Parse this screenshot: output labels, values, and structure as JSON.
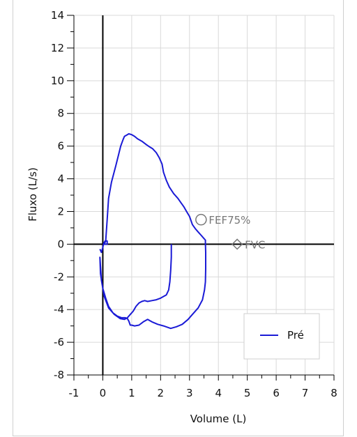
{
  "chart_data": {
    "type": "line",
    "xlabel": "Volume (L)",
    "ylabel": "Fluxo (L/s)",
    "xlim": [
      -1,
      8
    ],
    "ylim": [
      -8,
      14
    ],
    "x_ticks": [
      "-1",
      "0",
      "1",
      "2",
      "3",
      "4",
      "5",
      "6",
      "7",
      "8"
    ],
    "y_ticks": [
      "-8",
      "-6",
      "-4",
      "-2",
      "0",
      "2",
      "4",
      "6",
      "8",
      "10",
      "12",
      "14"
    ],
    "grid": true,
    "legend_position": "bottom-right",
    "series": [
      {
        "name": "Pré",
        "color": "#1a1ad6",
        "x": [
          -0.1,
          -0.05,
          0.0,
          0.03,
          0.08,
          0.15,
          0.15,
          0.05,
          0.1,
          0.15,
          0.2,
          0.3,
          0.45,
          0.55,
          0.62,
          0.7,
          0.75,
          0.85,
          0.9,
          1.0,
          1.1,
          1.2,
          1.35,
          1.5,
          1.62,
          1.72,
          1.85,
          1.95,
          2.05,
          2.1,
          2.2,
          2.3,
          2.45,
          2.6,
          2.7,
          2.8,
          2.9,
          3.0,
          3.05,
          3.1,
          3.2,
          3.3,
          3.4,
          3.5,
          3.55,
          3.55,
          3.56,
          3.56,
          3.55,
          3.52,
          3.45,
          3.3,
          3.1,
          2.95,
          2.75,
          2.55,
          2.35,
          2.1,
          1.9,
          1.7,
          1.55,
          1.4,
          1.25,
          1.1,
          1.0,
          0.95,
          0.9,
          0.85,
          0.78,
          0.65,
          0.5,
          0.35,
          0.2,
          0.1,
          0.0,
          -0.08,
          -0.1,
          -0.05,
          0.05,
          0.2,
          0.4,
          0.6,
          0.75,
          0.85,
          0.95,
          1.05,
          1.15,
          1.25,
          1.35,
          1.45,
          1.55,
          1.7,
          1.85,
          2.0,
          2.1,
          2.2,
          2.28,
          2.32,
          2.35,
          2.37,
          2.37
        ],
        "y": [
          -0.3,
          -0.5,
          -0.2,
          0.05,
          0.2,
          0.2,
          0.0,
          0.0,
          0.2,
          1.5,
          2.8,
          3.8,
          4.8,
          5.5,
          6.0,
          6.4,
          6.6,
          6.7,
          6.75,
          6.7,
          6.6,
          6.45,
          6.3,
          6.1,
          5.95,
          5.85,
          5.6,
          5.3,
          4.9,
          4.4,
          3.9,
          3.5,
          3.1,
          2.8,
          2.55,
          2.3,
          2.0,
          1.7,
          1.45,
          1.2,
          0.95,
          0.75,
          0.55,
          0.35,
          0.25,
          0.05,
          -0.5,
          -1.5,
          -2.3,
          -2.8,
          -3.4,
          -3.9,
          -4.3,
          -4.6,
          -4.9,
          -5.05,
          -5.15,
          -5.0,
          -4.9,
          -4.75,
          -4.6,
          -4.75,
          -4.95,
          -5.0,
          -4.95,
          -4.95,
          -4.7,
          -4.55,
          -4.5,
          -4.5,
          -4.4,
          -4.2,
          -3.8,
          -3.3,
          -2.7,
          -1.8,
          -0.8,
          -2.2,
          -3.2,
          -3.9,
          -4.3,
          -4.55,
          -4.6,
          -4.5,
          -4.3,
          -4.1,
          -3.8,
          -3.6,
          -3.5,
          -3.45,
          -3.5,
          -3.45,
          -3.4,
          -3.3,
          -3.2,
          -3.1,
          -2.8,
          -2.3,
          -1.6,
          -0.8,
          0.0
        ]
      }
    ],
    "markers": [
      {
        "label": "FEF75%",
        "shape": "circle",
        "x": 3.4,
        "y": 1.5,
        "color": "#777777"
      },
      {
        "label": "FVC",
        "shape": "diamond",
        "x": 4.65,
        "y": 0.0,
        "color": "#777777"
      }
    ]
  }
}
